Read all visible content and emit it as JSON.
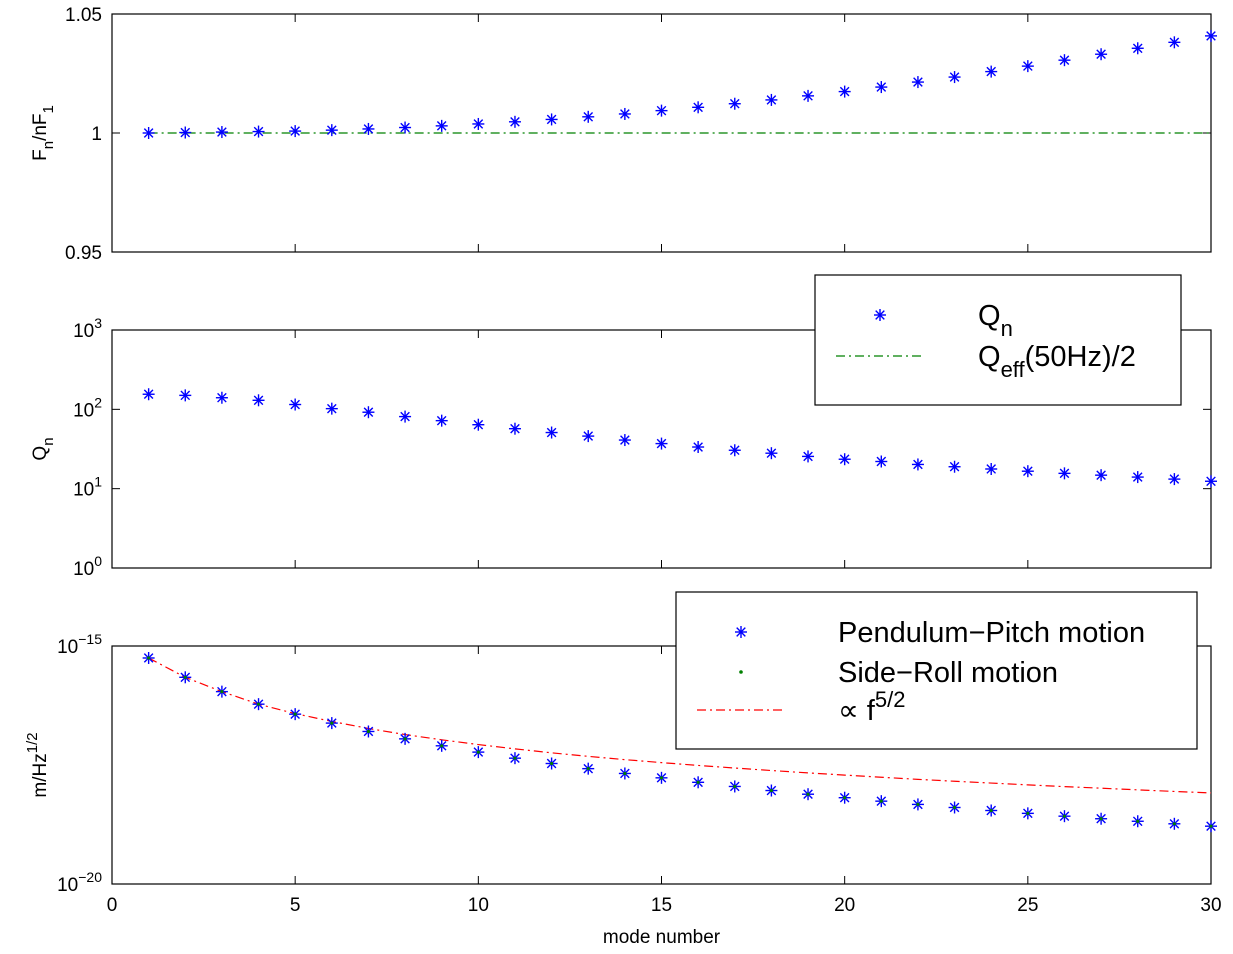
{
  "colors": {
    "stars": "#0000ff",
    "dots": "#008000",
    "ref_line_top": "#008000",
    "fit_line": "#ff0000",
    "axes": "#000000",
    "background": "#ffffff"
  },
  "chart_data": [
    {
      "type": "scatter",
      "id": "freq-ratio",
      "ylabel": "F_n/nF_1",
      "ylabel_parts": {
        "a": "F",
        "a_sub": "n",
        "b": "/nF",
        "b_sub": "1"
      },
      "xlim": [
        0,
        30
      ],
      "ylim": [
        0.95,
        1.05
      ],
      "yscale": "linear",
      "yticks": [
        0.95,
        1,
        1.05
      ],
      "ytick_labels": [
        "0.95",
        "1",
        "1.05"
      ],
      "grid": false,
      "series": [
        {
          "marker": "star",
          "color": "#0000ff",
          "x": [
            1,
            2,
            3,
            4,
            5,
            6,
            7,
            8,
            9,
            10,
            11,
            12,
            13,
            14,
            15,
            16,
            17,
            18,
            19,
            20,
            21,
            22,
            23,
            24,
            25,
            26,
            27,
            28,
            29,
            30
          ],
          "y": [
            1.0,
            1.0002,
            1.0004,
            1.0006,
            1.0008,
            1.0012,
            1.0017,
            1.0023,
            1.003,
            1.0038,
            1.0047,
            1.0057,
            1.0068,
            1.008,
            1.0094,
            1.0108,
            1.0123,
            1.0139,
            1.0156,
            1.0174,
            1.0193,
            1.0214,
            1.0235,
            1.0258,
            1.0281,
            1.0306,
            1.0331,
            1.0356,
            1.0381,
            1.0408
          ]
        },
        {
          "marker": "dash-dot-line",
          "color": "#008000",
          "x": [
            1,
            30
          ],
          "y": [
            1,
            1
          ]
        }
      ]
    },
    {
      "type": "scatter",
      "id": "quality-factor",
      "ylabel": "Q_n",
      "ylabel_parts": {
        "a": "Q",
        "a_sub": "n"
      },
      "xlim": [
        0,
        30
      ],
      "ylim": [
        1,
        1000
      ],
      "yscale": "log",
      "yticks": [
        1,
        10,
        100,
        1000
      ],
      "ytick_labels": [
        {
          "base": "10",
          "exp": "0"
        },
        {
          "base": "10",
          "exp": "1"
        },
        {
          "base": "10",
          "exp": "2"
        },
        {
          "base": "10",
          "exp": "3"
        }
      ],
      "grid": false,
      "legend": {
        "placement": "top-right",
        "entries": [
          {
            "marker": "star",
            "color": "#0000ff",
            "label": "Q",
            "label_sub": "n"
          },
          {
            "marker": "dash-dot-line",
            "color": "#008000",
            "label": "Q",
            "label_sub": "eff",
            "label_rest": "(50Hz)/2"
          }
        ]
      },
      "series": [
        {
          "marker": "star",
          "color": "#0000ff",
          "x": [
            1,
            2,
            3,
            4,
            5,
            6,
            7,
            8,
            9,
            10,
            11,
            12,
            13,
            14,
            15,
            16,
            17,
            18,
            19,
            20,
            21,
            22,
            23,
            24,
            25,
            26,
            27,
            28,
            29,
            30
          ],
          "y": [
            155,
            150,
            140,
            130,
            115,
            102,
            92,
            81,
            72,
            64,
            57,
            51,
            46,
            41,
            37,
            33.5,
            30.5,
            28,
            25.5,
            23.5,
            22,
            20.2,
            18.9,
            17.7,
            16.6,
            15.6,
            14.8,
            14,
            13.2,
            12.4
          ]
        }
      ]
    },
    {
      "type": "scatter",
      "id": "motion-spectrum",
      "ylabel": "m/Hz^1/2",
      "ylabel_parts": {
        "a": "m/Hz",
        "a_sup": "1/2"
      },
      "xlabel": "mode number",
      "xlim": [
        0,
        30
      ],
      "xticks": [
        0,
        5,
        10,
        15,
        20,
        25,
        30
      ],
      "xtick_labels": [
        "0",
        "5",
        "10",
        "15",
        "20",
        "25",
        "30"
      ],
      "ylim": [
        1e-20,
        1e-15
      ],
      "yscale": "log",
      "yticks": [
        1e-20,
        1e-15
      ],
      "ytick_labels": [
        {
          "base": "10",
          "exp": "−20"
        },
        {
          "base": "10",
          "exp": "−15"
        }
      ],
      "grid": false,
      "legend": {
        "placement": "top-right",
        "entries": [
          {
            "marker": "star",
            "color": "#0000ff",
            "label": "Pendulum−Pitch motion"
          },
          {
            "marker": "dot",
            "color": "#008000",
            "label": "Side−Roll motion"
          },
          {
            "marker": "dash-dot-line",
            "color": "#ff0000",
            "label": "∝ f",
            "label_sup": "5/2"
          }
        ]
      },
      "series": [
        {
          "marker": "star",
          "color": "#0000ff",
          "x": [
            1,
            2,
            3,
            4,
            5,
            6,
            7,
            8,
            9,
            10,
            11,
            12,
            13,
            14,
            15,
            16,
            17,
            18,
            19,
            20,
            21,
            22,
            23,
            24,
            25,
            26,
            27,
            28,
            29,
            30
          ],
          "y": [
            5.6e-16,
            2.2e-16,
            1.1e-16,
            6e-17,
            3.7e-17,
            2.4e-17,
            1.6e-17,
            1.12e-17,
            8e-18,
            5.9e-18,
            4.4e-18,
            3.4e-18,
            2.65e-18,
            2.1e-18,
            1.7e-18,
            1.37e-18,
            1.12e-18,
            9.2e-19,
            7.7e-19,
            6.5e-19,
            5.5e-19,
            4.7e-19,
            4.05e-19,
            3.5e-19,
            3.05e-19,
            2.66e-19,
            2.35e-19,
            2.08e-19,
            1.84e-19,
            1.64e-19
          ]
        },
        {
          "marker": "dot",
          "color": "#008000",
          "x": [
            1,
            2,
            3,
            4,
            5,
            6,
            7,
            8,
            9,
            10,
            11,
            12,
            13,
            14,
            15,
            16,
            17,
            18,
            19,
            20,
            21,
            22,
            23,
            24,
            25,
            26,
            27,
            28,
            29,
            30
          ],
          "y": [
            5.6e-16,
            2.2e-16,
            1.1e-16,
            6e-17,
            3.7e-17,
            2.4e-17,
            1.6e-17,
            1.12e-17,
            8e-18,
            5.9e-18,
            4.4e-18,
            3.4e-18,
            2.65e-18,
            2.1e-18,
            1.7e-18,
            1.37e-18,
            1.12e-18,
            9.2e-19,
            7.7e-19,
            6.5e-19,
            5.5e-19,
            4.7e-19,
            4.05e-19,
            3.5e-19,
            3.05e-19,
            2.66e-19,
            2.35e-19,
            2.08e-19,
            1.84e-19,
            1.64e-19
          ]
        },
        {
          "marker": "dash-dot-line",
          "color": "#ff0000",
          "x": [
            1,
            2,
            3,
            4,
            5,
            6,
            7,
            8,
            9,
            10,
            11,
            12,
            13,
            14,
            15,
            16,
            17,
            18,
            19,
            20,
            21,
            22,
            23,
            24,
            25,
            26,
            27,
            28,
            29,
            30
          ],
          "y": [
            5.6e-16,
            2.2e-16,
            1.1e-16,
            6e-17,
            3.8e-17,
            2.6e-17,
            1.85e-17,
            1.38e-17,
            1.07e-17,
            8.5e-18,
            6.9e-18,
            5.7e-18,
            4.8e-18,
            4.1e-18,
            3.55e-18,
            3.1e-18,
            2.73e-18,
            2.42e-18,
            2.16e-18,
            1.94e-18,
            1.75e-18,
            1.58e-18,
            1.44e-18,
            1.32e-18,
            1.21e-18,
            1.11e-18,
            1.03e-18,
            9.5e-19,
            8.8e-19,
            8.2e-19
          ]
        }
      ]
    }
  ]
}
